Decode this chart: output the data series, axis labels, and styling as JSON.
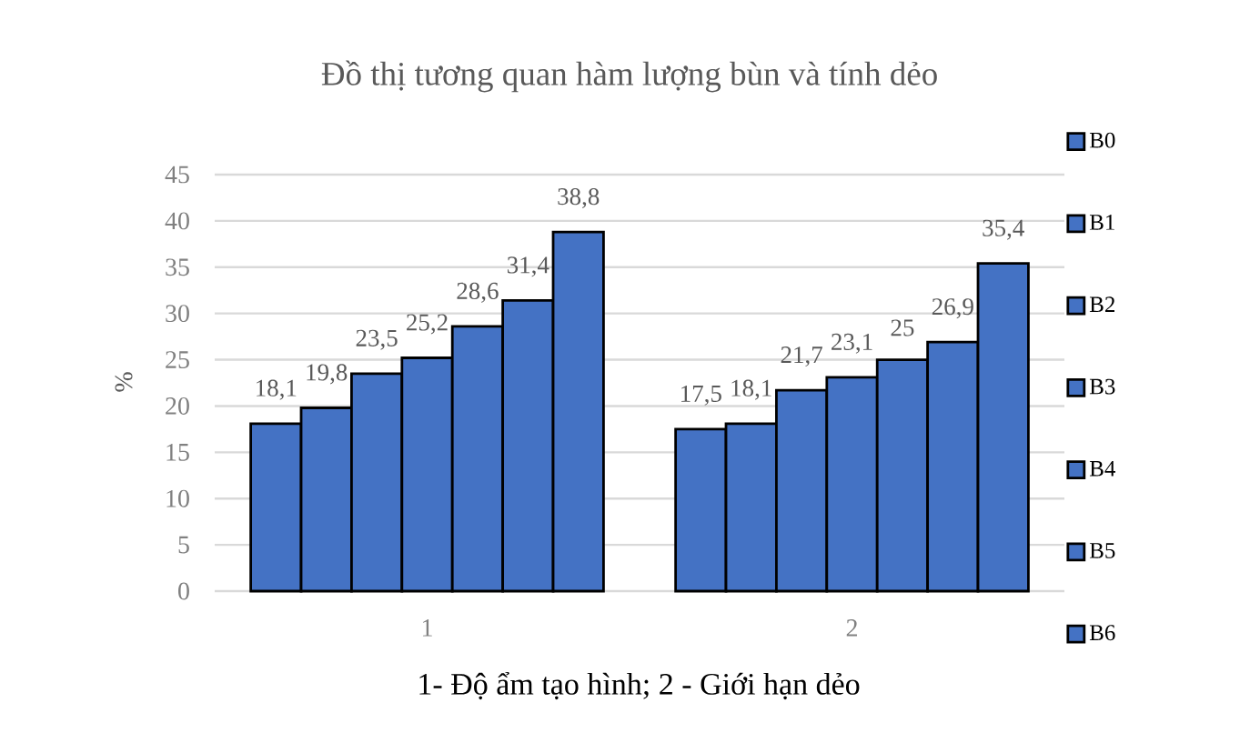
{
  "chart_data": {
    "type": "bar",
    "title": "Đồ thị tương quan hàm lượng bùn và tính dẻo",
    "xlabel": "1- Độ ẩm tạo hình; 2 - Giới hạn dẻo",
    "ylabel": "%",
    "categories": [
      "1",
      "2"
    ],
    "ylim": [
      0,
      45
    ],
    "yticks": [
      0,
      5,
      10,
      15,
      20,
      25,
      30,
      35,
      40,
      45
    ],
    "grid": "y",
    "legend": "right",
    "series": [
      {
        "name": "B0",
        "color": "#4472c4",
        "values": [
          18.1,
          17.5
        ],
        "value_labels": [
          "18,1",
          "17,5"
        ]
      },
      {
        "name": "B1",
        "color": "#4472c4",
        "values": [
          19.8,
          18.1
        ],
        "value_labels": [
          "19,8",
          "18,1"
        ]
      },
      {
        "name": "B2",
        "color": "#4472c4",
        "values": [
          23.5,
          21.7
        ],
        "value_labels": [
          "23,5",
          "21,7"
        ]
      },
      {
        "name": "B3",
        "color": "#4472c4",
        "values": [
          25.2,
          23.1
        ],
        "value_labels": [
          "25,2",
          "23,1"
        ]
      },
      {
        "name": "B4",
        "color": "#4472c4",
        "values": [
          28.6,
          25
        ],
        "value_labels": [
          "28,6",
          "25"
        ]
      },
      {
        "name": "B5",
        "color": "#4472c4",
        "values": [
          31.4,
          26.9
        ],
        "value_labels": [
          "31,4",
          "26,9"
        ]
      },
      {
        "name": "B6",
        "color": "#4472c4",
        "values": [
          38.8,
          35.4
        ],
        "value_labels": [
          "38,8",
          "35,4"
        ]
      }
    ]
  }
}
